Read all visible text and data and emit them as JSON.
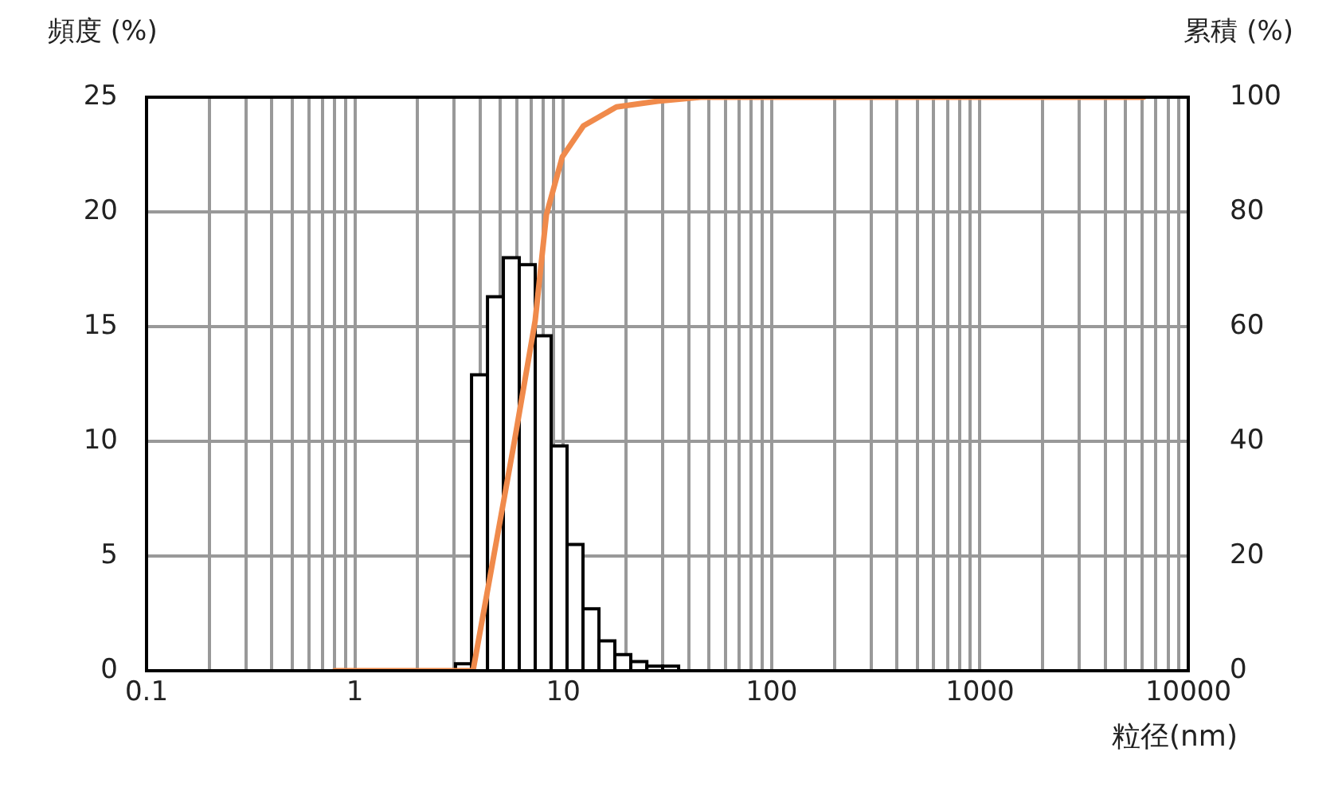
{
  "chart_data": {
    "type": "histogram",
    "ylabel": "頻度 (%)",
    "y2label": "累積 (%)",
    "xlabel": "粒径(nm)",
    "log": "x",
    "bins": [
      3.04,
      3.63,
      4.33,
      5.16,
      6.15,
      7.34,
      8.75,
      10.43,
      12.44,
      14.84,
      17.69,
      21.1,
      25.2,
      30.0,
      35.8
    ],
    "values": [
      0.3,
      12.9,
      16.3,
      18.0,
      17.7,
      14.6,
      9.8,
      5.5,
      2.7,
      1.3,
      0.7,
      0.4,
      0.2,
      0.2
    ],
    "color": "#000000",
    "series": [
      {
        "type": "line",
        "axis": "y2",
        "color": "#f08a4b",
        "x": [
          0.8,
          3.27,
          3.69,
          4.64,
          5.83,
          7.33,
          8.3,
          9.9,
          12.5,
          18.0,
          28.4,
          45.7,
          6100
        ],
        "values": [
          0,
          0,
          0,
          20,
          40,
          61,
          79.5,
          89.6,
          95,
          98.3,
          99.3,
          100,
          100
        ]
      }
    ],
    "xlim": [
      0.1,
      10000
    ],
    "xticks": [
      0.1,
      {
        "value": 0.2,
        "label": null
      },
      {
        "value": 0.3,
        "label": null
      },
      {
        "value": 0.4,
        "label": null
      },
      {
        "value": 0.5,
        "label": null
      },
      {
        "value": 0.6,
        "label": null
      },
      {
        "value": 0.7,
        "label": null
      },
      {
        "value": 0.8,
        "label": null
      },
      {
        "value": 0.9,
        "label": null
      },
      1,
      {
        "value": 2,
        "label": null
      },
      {
        "value": 3,
        "label": null
      },
      {
        "value": 4,
        "label": null
      },
      {
        "value": 5,
        "label": null
      },
      {
        "value": 6,
        "label": null
      },
      {
        "value": 7,
        "label": null
      },
      {
        "value": 8,
        "label": null
      },
      {
        "value": 9,
        "label": null
      },
      10,
      {
        "value": 20,
        "label": null
      },
      {
        "value": 30,
        "label": null
      },
      {
        "value": 40,
        "label": null
      },
      {
        "value": 50,
        "label": null
      },
      {
        "value": 60,
        "label": null
      },
      {
        "value": 70,
        "label": null
      },
      {
        "value": 80,
        "label": null
      },
      {
        "value": 90,
        "label": null
      },
      100,
      {
        "value": 200,
        "label": null
      },
      {
        "value": 300,
        "label": null
      },
      {
        "value": 400,
        "label": null
      },
      {
        "value": 500,
        "label": null
      },
      {
        "value": 600,
        "label": null
      },
      {
        "value": 700,
        "label": null
      },
      {
        "value": 800,
        "label": null
      },
      {
        "value": 900,
        "label": null
      },
      1000,
      {
        "value": 2000,
        "label": null
      },
      {
        "value": 3000,
        "label": null
      },
      {
        "value": 4000,
        "label": null
      },
      {
        "value": 5000,
        "label": null
      },
      {
        "value": 6000,
        "label": null
      },
      {
        "value": 7000,
        "label": null
      },
      {
        "value": 8000,
        "label": null
      },
      {
        "value": 9000,
        "label": null
      },
      10000
    ],
    "ylim": [
      0,
      25
    ],
    "yticks": [
      0,
      5,
      10,
      15,
      20,
      25
    ],
    "y2lim": [
      0,
      100
    ],
    "y2ticks": [
      0,
      20,
      40,
      60,
      80,
      100
    ],
    "grid": true,
    "legend": false,
    "marker": "none",
    "line_style": "solid"
  }
}
